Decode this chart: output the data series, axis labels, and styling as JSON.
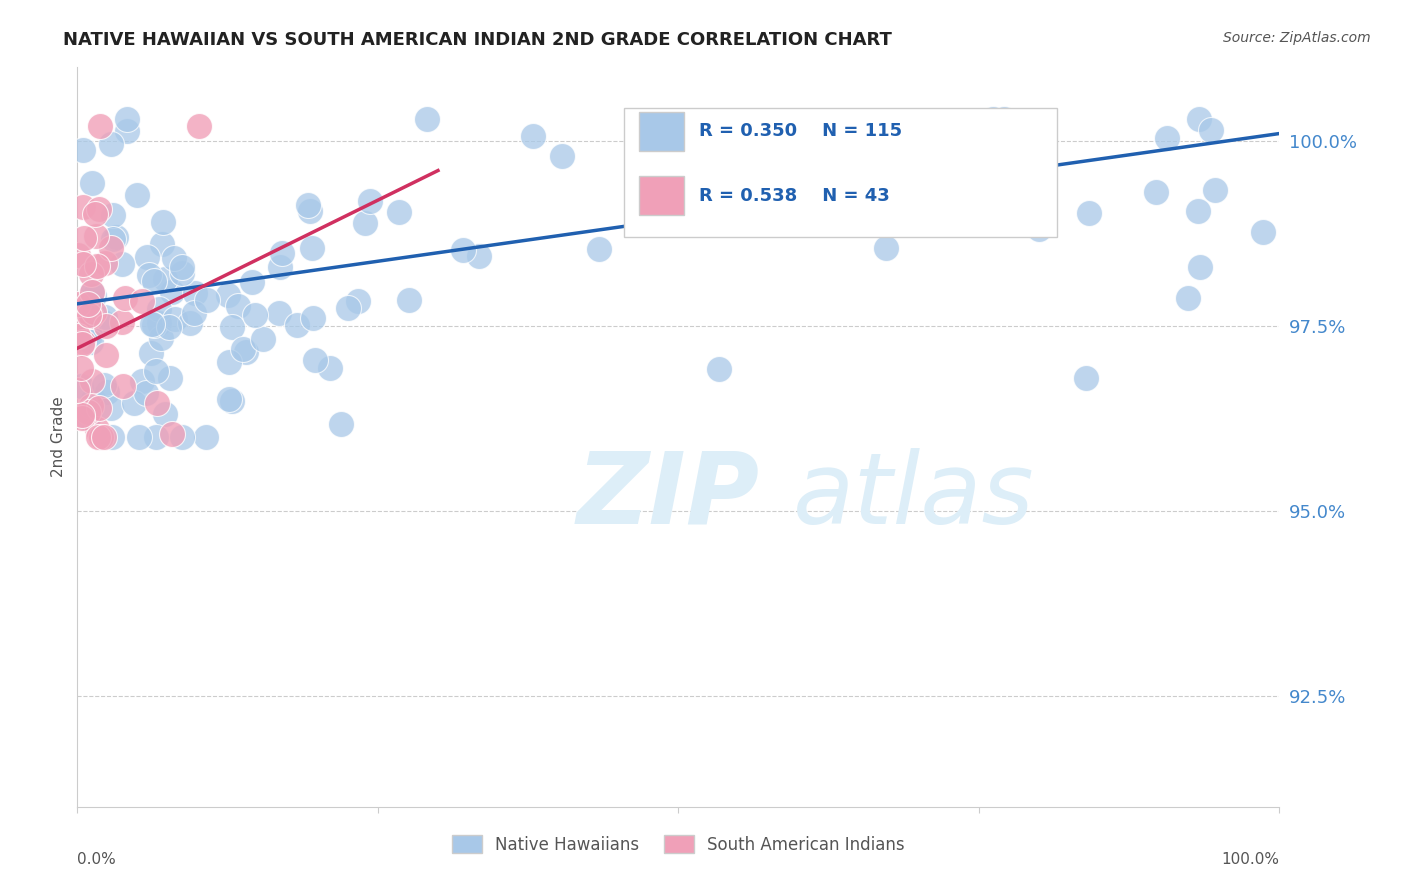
{
  "title": "NATIVE HAWAIIAN VS SOUTH AMERICAN INDIAN 2ND GRADE CORRELATION CHART",
  "ylabel": "2nd Grade",
  "source_text": "Source: ZipAtlas.com",
  "watermark_zip": "ZIP",
  "watermark_atlas": "atlas",
  "r_blue": 0.35,
  "n_blue": 115,
  "r_pink": 0.538,
  "n_pink": 43,
  "ytick_labels": [
    "92.5%",
    "95.0%",
    "97.5%",
    "100.0%"
  ],
  "ytick_values": [
    0.925,
    0.95,
    0.975,
    1.0
  ],
  "xlim": [
    0.0,
    1.0
  ],
  "ylim": [
    0.91,
    1.01
  ],
  "blue_color": "#a8c8e8",
  "blue_edge_color": "#ffffff",
  "pink_color": "#f0a0b8",
  "pink_edge_color": "#ffffff",
  "blue_line_color": "#2060b0",
  "pink_line_color": "#d03060",
  "grid_color": "#aaaaaa",
  "axis_color": "#cccccc",
  "text_color": "#555555",
  "ytick_color": "#4488cc",
  "background_color": "#ffffff",
  "legend_edge_color": "#cccccc",
  "bottom_legend_text_color": "#555555",
  "blue_trend_x0": 0.0,
  "blue_trend_y0": 0.978,
  "blue_trend_x1": 1.0,
  "blue_trend_y1": 1.001,
  "pink_trend_x0": 0.0,
  "pink_trend_y0": 0.972,
  "pink_trend_x1": 0.3,
  "pink_trend_y1": 0.996
}
